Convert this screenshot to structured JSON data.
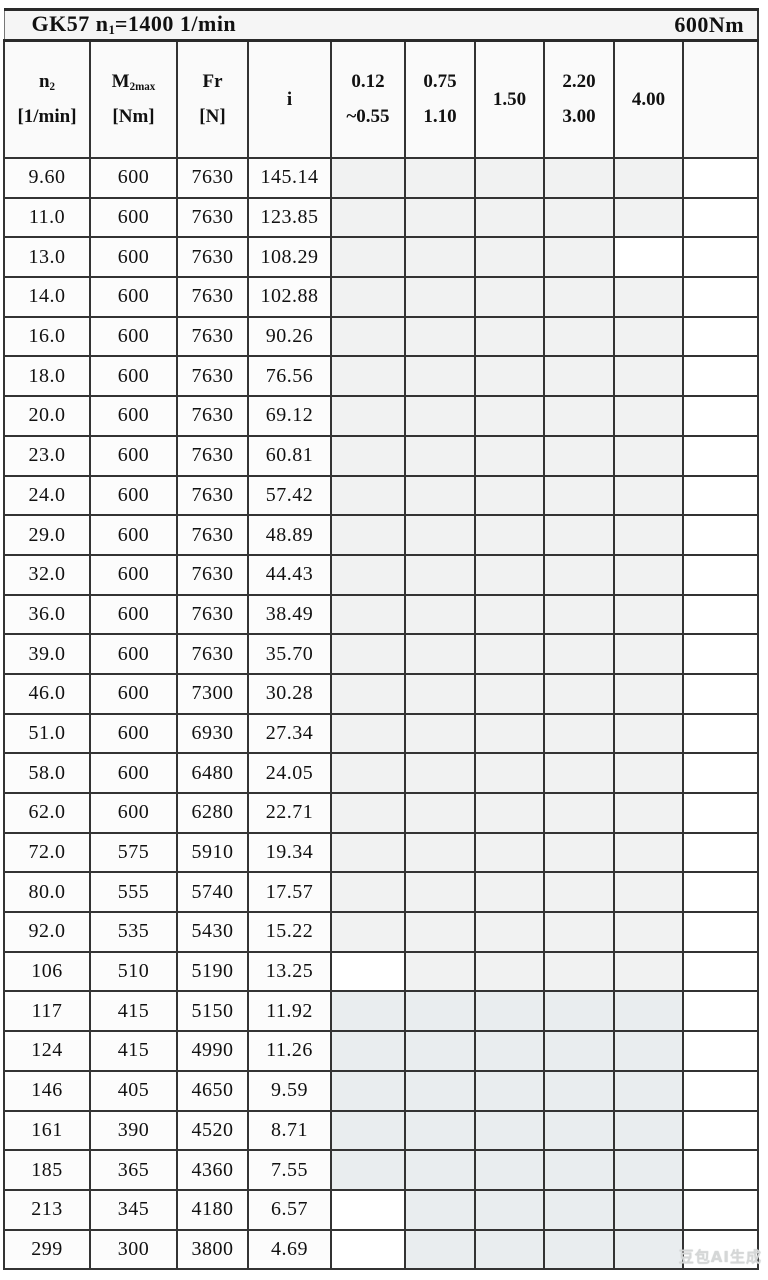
{
  "title": {
    "model_prefix": "GK57 n",
    "model_sub": "1",
    "model_suffix": "=1400 1/min",
    "torque": "600Nm"
  },
  "header": {
    "columns": [
      {
        "name": "n2-speed",
        "main": "n",
        "sub": "2",
        "line2": "[1/min]"
      },
      {
        "name": "m2max-torque",
        "main": "M",
        "sub": "2max",
        "line2": "[Nm]"
      },
      {
        "name": "fr-force",
        "main": "Fr",
        "sub": "",
        "line2": "[N]"
      },
      {
        "name": "ratio-i",
        "main": "i",
        "sub": "",
        "line2": ""
      },
      {
        "name": "power-0.12-0.55",
        "main": "0.12",
        "sub": "",
        "line2": "~0.55"
      },
      {
        "name": "power-0.75-1.10",
        "main": "0.75",
        "sub": "",
        "line2": "1.10"
      },
      {
        "name": "power-1.50",
        "main": "1.50",
        "sub": "",
        "line2": ""
      },
      {
        "name": "power-2.20-3.00",
        "main": "2.20",
        "sub": "",
        "line2": "3.00"
      },
      {
        "name": "power-4.00",
        "main": "4.00",
        "sub": "",
        "line2": ""
      },
      {
        "name": "power-blank",
        "main": "",
        "sub": "",
        "line2": ""
      }
    ]
  },
  "shade_colors": {
    "g": "#f1f2f2",
    "b": "#e9edef",
    "w": "#ffffff"
  },
  "rows": [
    {
      "n2": "9.60",
      "m2max": "600",
      "fr": "7630",
      "i": "145.14",
      "shades": [
        "g",
        "g",
        "g",
        "g",
        "g"
      ]
    },
    {
      "n2": "11.0",
      "m2max": "600",
      "fr": "7630",
      "i": "123.85",
      "shades": [
        "g",
        "g",
        "g",
        "g",
        "g"
      ]
    },
    {
      "n2": "13.0",
      "m2max": "600",
      "fr": "7630",
      "i": "108.29",
      "shades": [
        "g",
        "g",
        "g",
        "g",
        "w"
      ]
    },
    {
      "n2": "14.0",
      "m2max": "600",
      "fr": "7630",
      "i": "102.88",
      "shades": [
        "g",
        "g",
        "g",
        "g",
        "g"
      ]
    },
    {
      "n2": "16.0",
      "m2max": "600",
      "fr": "7630",
      "i": "90.26",
      "shades": [
        "g",
        "g",
        "g",
        "g",
        "g"
      ]
    },
    {
      "n2": "18.0",
      "m2max": "600",
      "fr": "7630",
      "i": "76.56",
      "shades": [
        "g",
        "g",
        "g",
        "g",
        "g"
      ]
    },
    {
      "n2": "20.0",
      "m2max": "600",
      "fr": "7630",
      "i": "69.12",
      "shades": [
        "g",
        "g",
        "g",
        "g",
        "g"
      ]
    },
    {
      "n2": "23.0",
      "m2max": "600",
      "fr": "7630",
      "i": "60.81",
      "shades": [
        "g",
        "g",
        "g",
        "g",
        "g"
      ]
    },
    {
      "n2": "24.0",
      "m2max": "600",
      "fr": "7630",
      "i": "57.42",
      "shades": [
        "g",
        "g",
        "g",
        "g",
        "g"
      ]
    },
    {
      "n2": "29.0",
      "m2max": "600",
      "fr": "7630",
      "i": "48.89",
      "shades": [
        "g",
        "g",
        "g",
        "g",
        "g"
      ]
    },
    {
      "n2": "32.0",
      "m2max": "600",
      "fr": "7630",
      "i": "44.43",
      "shades": [
        "g",
        "g",
        "g",
        "g",
        "g"
      ]
    },
    {
      "n2": "36.0",
      "m2max": "600",
      "fr": "7630",
      "i": "38.49",
      "shades": [
        "g",
        "g",
        "g",
        "g",
        "g"
      ]
    },
    {
      "n2": "39.0",
      "m2max": "600",
      "fr": "7630",
      "i": "35.70",
      "shades": [
        "g",
        "g",
        "g",
        "g",
        "g"
      ]
    },
    {
      "n2": "46.0",
      "m2max": "600",
      "fr": "7300",
      "i": "30.28",
      "shades": [
        "g",
        "g",
        "g",
        "g",
        "g"
      ]
    },
    {
      "n2": "51.0",
      "m2max": "600",
      "fr": "6930",
      "i": "27.34",
      "shades": [
        "g",
        "g",
        "g",
        "g",
        "g"
      ]
    },
    {
      "n2": "58.0",
      "m2max": "600",
      "fr": "6480",
      "i": "24.05",
      "shades": [
        "g",
        "g",
        "g",
        "g",
        "g"
      ]
    },
    {
      "n2": "62.0",
      "m2max": "600",
      "fr": "6280",
      "i": "22.71",
      "shades": [
        "g",
        "g",
        "g",
        "g",
        "g"
      ]
    },
    {
      "n2": "72.0",
      "m2max": "575",
      "fr": "5910",
      "i": "19.34",
      "shades": [
        "g",
        "g",
        "g",
        "g",
        "g"
      ]
    },
    {
      "n2": "80.0",
      "m2max": "555",
      "fr": "5740",
      "i": "17.57",
      "shades": [
        "g",
        "g",
        "g",
        "g",
        "g"
      ]
    },
    {
      "n2": "92.0",
      "m2max": "535",
      "fr": "5430",
      "i": "15.22",
      "shades": [
        "g",
        "g",
        "g",
        "g",
        "g"
      ]
    },
    {
      "n2": "106",
      "m2max": "510",
      "fr": "5190",
      "i": "13.25",
      "shades": [
        "w",
        "g",
        "g",
        "g",
        "g"
      ]
    },
    {
      "n2": "117",
      "m2max": "415",
      "fr": "5150",
      "i": "11.92",
      "shades": [
        "b",
        "b",
        "b",
        "b",
        "b"
      ]
    },
    {
      "n2": "124",
      "m2max": "415",
      "fr": "4990",
      "i": "11.26",
      "shades": [
        "b",
        "b",
        "b",
        "b",
        "b"
      ]
    },
    {
      "n2": "146",
      "m2max": "405",
      "fr": "4650",
      "i": "9.59",
      "shades": [
        "b",
        "b",
        "b",
        "b",
        "b"
      ]
    },
    {
      "n2": "161",
      "m2max": "390",
      "fr": "4520",
      "i": "8.71",
      "shades": [
        "b",
        "b",
        "b",
        "b",
        "b"
      ]
    },
    {
      "n2": "185",
      "m2max": "365",
      "fr": "4360",
      "i": "7.55",
      "shades": [
        "b",
        "b",
        "b",
        "b",
        "b"
      ]
    },
    {
      "n2": "213",
      "m2max": "345",
      "fr": "4180",
      "i": "6.57",
      "shades": [
        "w",
        "b",
        "b",
        "b",
        "b"
      ]
    },
    {
      "n2": "299",
      "m2max": "300",
      "fr": "3800",
      "i": "4.69",
      "shades": [
        "w",
        "b",
        "b",
        "b",
        "b"
      ]
    }
  ],
  "watermark": {
    "text": "豆包AI生成"
  }
}
